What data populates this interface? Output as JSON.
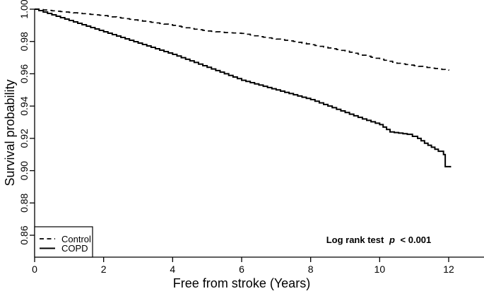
{
  "chart_data": {
    "type": "line",
    "subtype": "kaplan-meier-step",
    "title": "",
    "xlabel": "Free from stroke (Years)",
    "ylabel": "Survival probability",
    "xlim": [
      0,
      13
    ],
    "ylim": [
      0.855,
      1.0
    ],
    "grid": false,
    "background_color": "#ffffff",
    "line_color": "#000000",
    "x_ticks": [
      {
        "v": 0,
        "label": "0"
      },
      {
        "v": 2,
        "label": "2"
      },
      {
        "v": 4,
        "label": "4"
      },
      {
        "v": 6,
        "label": "6"
      },
      {
        "v": 8,
        "label": "8"
      },
      {
        "v": 10,
        "label": "10"
      },
      {
        "v": 12,
        "label": "12"
      }
    ],
    "y_ticks": [
      {
        "v": 0.86,
        "label": "0.86"
      },
      {
        "v": 0.88,
        "label": "0.88"
      },
      {
        "v": 0.9,
        "label": "0.90"
      },
      {
        "v": 0.92,
        "label": "0.92"
      },
      {
        "v": 0.94,
        "label": "0.94"
      },
      {
        "v": 0.96,
        "label": "0.96"
      },
      {
        "v": 0.98,
        "label": "0.98"
      },
      {
        "v": 1.0,
        "label": "1.00"
      }
    ],
    "series": [
      {
        "name": "Control",
        "line": "dashed",
        "points": [
          [
            0,
            1.0
          ],
          [
            0.5,
            0.999
          ],
          [
            1,
            0.998
          ],
          [
            1.5,
            0.997
          ],
          [
            2,
            0.996
          ],
          [
            2.5,
            0.9945
          ],
          [
            3,
            0.993
          ],
          [
            3.5,
            0.9915
          ],
          [
            4,
            0.99
          ],
          [
            4.5,
            0.988
          ],
          [
            5,
            0.9865
          ],
          [
            5.5,
            0.9855
          ],
          [
            6,
            0.985
          ],
          [
            6.5,
            0.983
          ],
          [
            7,
            0.9815
          ],
          [
            7.5,
            0.98
          ],
          [
            8,
            0.978
          ],
          [
            8.5,
            0.976
          ],
          [
            9,
            0.974
          ],
          [
            9.5,
            0.9715
          ],
          [
            10,
            0.969
          ],
          [
            10.5,
            0.9665
          ],
          [
            11,
            0.965
          ],
          [
            11.5,
            0.9635
          ],
          [
            11.7,
            0.963
          ],
          [
            12,
            0.962
          ]
        ]
      },
      {
        "name": "COPD",
        "line": "solid",
        "points": [
          [
            0,
            1.0
          ],
          [
            0.5,
            0.9965
          ],
          [
            1,
            0.993
          ],
          [
            1.5,
            0.9895
          ],
          [
            2,
            0.986
          ],
          [
            2.5,
            0.9825
          ],
          [
            3,
            0.979
          ],
          [
            3.5,
            0.9755
          ],
          [
            4,
            0.972
          ],
          [
            4.5,
            0.968
          ],
          [
            5,
            0.964
          ],
          [
            5.5,
            0.96
          ],
          [
            6,
            0.956
          ],
          [
            6.5,
            0.953
          ],
          [
            7,
            0.95
          ],
          [
            7.5,
            0.947
          ],
          [
            8,
            0.944
          ],
          [
            8.5,
            0.94
          ],
          [
            9,
            0.936
          ],
          [
            9.5,
            0.932
          ],
          [
            10,
            0.9285
          ],
          [
            10.3,
            0.924
          ],
          [
            10.8,
            0.9225
          ],
          [
            11.1,
            0.92
          ],
          [
            11.3,
            0.917
          ],
          [
            11.5,
            0.9145
          ],
          [
            11.7,
            0.912
          ],
          [
            11.85,
            0.91
          ],
          [
            11.9,
            0.9025
          ],
          [
            12.05,
            0.902
          ]
        ]
      }
    ],
    "legend": {
      "position": "bottom-left",
      "items": [
        {
          "label": "Control",
          "line": "dashed"
        },
        {
          "label": "COPD",
          "line": "solid"
        }
      ]
    },
    "annotation": {
      "prefix": "Log rank test",
      "p_symbol": "p",
      "suffix": "< 0.001"
    }
  }
}
